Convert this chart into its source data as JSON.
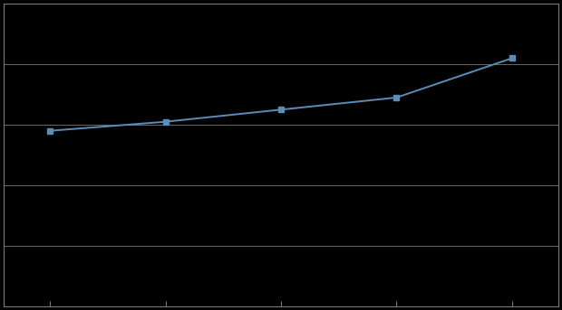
{
  "x_values": [
    1,
    2,
    3,
    4,
    5
  ],
  "y_values": [
    5.8,
    6.1,
    6.5,
    6.9,
    8.2
  ],
  "line_color": "#5b8db8",
  "marker_style": "s",
  "marker_size": 4,
  "marker_color": "#5b8db8",
  "line_width": 1.4,
  "background_color": "#000000",
  "plot_area_color": "#000000",
  "grid_color": "#6a6a6a",
  "spine_color": "#7a7a7a",
  "tick_color": "#7a7a7a",
  "xlim": [
    0.6,
    5.4
  ],
  "ylim": [
    0.0,
    10.0
  ],
  "x_ticks": [
    1,
    2,
    3,
    4,
    5
  ],
  "y_ticks": [
    0.0,
    2.0,
    4.0,
    6.0,
    8.0,
    10.0
  ],
  "figsize": [
    6.2,
    3.43
  ],
  "dpi": 100
}
